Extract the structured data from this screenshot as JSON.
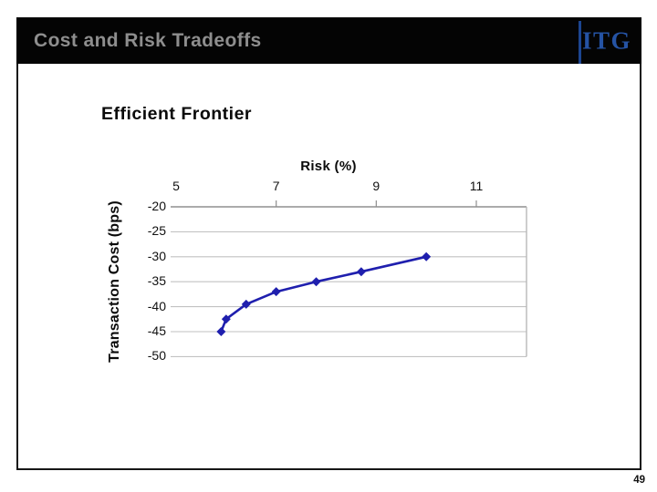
{
  "slide": {
    "title": "Cost and Risk Tradeoffs",
    "logo": "ITG",
    "page_number": "49"
  },
  "colors": {
    "bar_bg": "#040404",
    "title_gray": "#8e8e8e",
    "logo_blue": "#2553a4",
    "divider_blue": "#1c4590",
    "series_blue": "#1f1fae",
    "gridline": "#c2c2c2",
    "axis_line": "#8f8f8f",
    "plot_border": "#b8b8b8"
  },
  "chart_data": {
    "type": "line",
    "title": "Efficient Frontier",
    "xlabel": "Risk (%)",
    "ylabel": "Transaction Cost (bps)",
    "x_ticks": [
      5,
      7,
      9,
      11
    ],
    "y_ticks": [
      -20,
      -25,
      -30,
      -35,
      -40,
      -45,
      -50
    ],
    "xlim": [
      4.9,
      12.0
    ],
    "ylim": [
      -50,
      -20
    ],
    "x_axis_position": "top",
    "grid": "horizontal",
    "legend": "none",
    "marker": "diamond",
    "series": [
      {
        "name": "Efficient Frontier",
        "points": [
          [
            5.9,
            -45
          ],
          [
            6.0,
            -42.5
          ],
          [
            6.4,
            -39.5
          ],
          [
            7.0,
            -37
          ],
          [
            7.8,
            -35
          ],
          [
            8.7,
            -33
          ],
          [
            10.0,
            -30
          ]
        ]
      }
    ]
  }
}
